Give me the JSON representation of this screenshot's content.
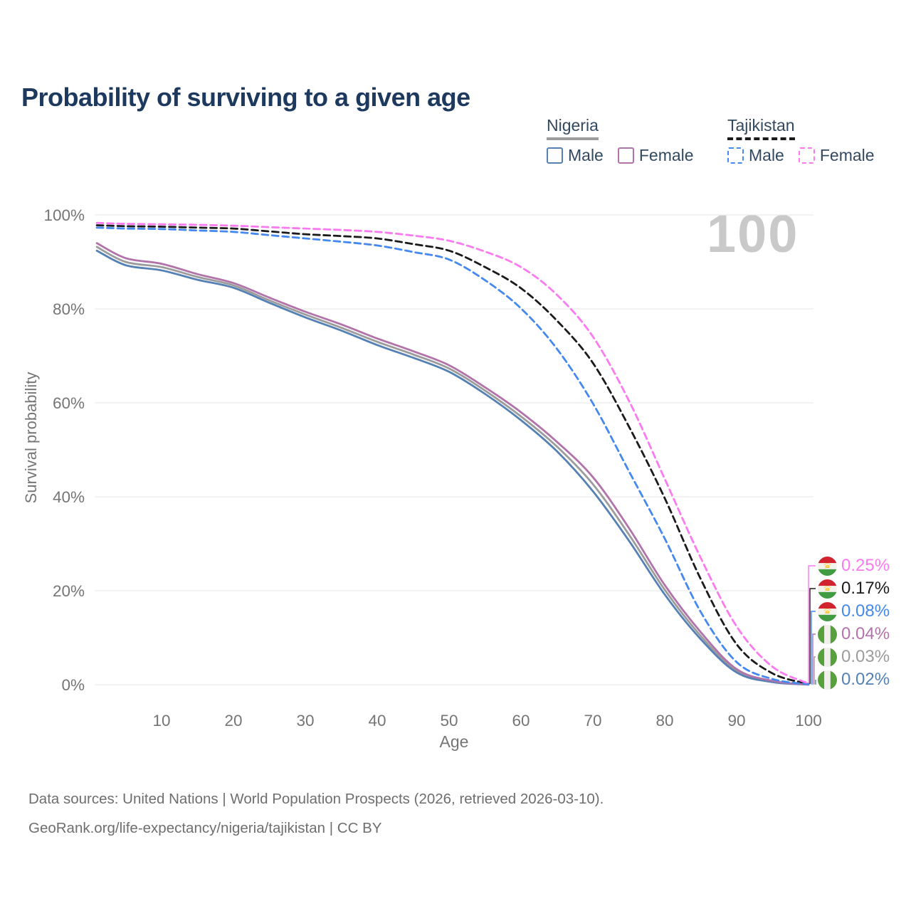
{
  "title": "Probability of surviving to a given age",
  "watermark": "100",
  "legend": {
    "groups": [
      {
        "country": "Nigeria",
        "line_style": "solid",
        "line_color": "#9c9c9c",
        "items": [
          {
            "label": "Male",
            "color": "#5581b5",
            "dash": false
          },
          {
            "label": "Female",
            "color": "#b273aa",
            "dash": false
          }
        ]
      },
      {
        "country": "Tajikistan",
        "line_style": "dashed",
        "line_color": "#1b1b1b",
        "items": [
          {
            "label": "Male",
            "color": "#4488f0",
            "dash": true
          },
          {
            "label": "Female",
            "color": "#fb7af0",
            "dash": true
          }
        ]
      }
    ]
  },
  "chart_data": {
    "type": "line",
    "title": "Probability of surviving to a given age",
    "xlabel": "Age",
    "ylabel": "Survival probability",
    "xlim": [
      1,
      100
    ],
    "ylim": [
      0,
      100
    ],
    "grid": "horizontal",
    "x_ticks": [
      10,
      20,
      30,
      40,
      50,
      60,
      70,
      80,
      90,
      100
    ],
    "y_ticks": [
      {
        "value": 0,
        "label": "0%"
      },
      {
        "value": 20,
        "label": "20%"
      },
      {
        "value": 40,
        "label": "40%"
      },
      {
        "value": 60,
        "label": "60%"
      },
      {
        "value": 80,
        "label": "80%"
      },
      {
        "value": 100,
        "label": "100%"
      }
    ],
    "x": [
      1,
      5,
      10,
      15,
      20,
      25,
      30,
      35,
      40,
      45,
      50,
      55,
      60,
      65,
      70,
      75,
      80,
      85,
      90,
      95,
      100
    ],
    "series": [
      {
        "name": "Nigeria Both sexes",
        "country": "Nigeria",
        "sex": "both",
        "color": "#9c9c9c",
        "dash": false,
        "flag": "nigeria",
        "end_label": "0.03%",
        "end_label_color": "#9c9c9c",
        "values": [
          93.2,
          90.0,
          88.9,
          86.8,
          85.0,
          81.8,
          78.8,
          76.0,
          73.0,
          70.3,
          67.3,
          62.6,
          57.1,
          50.7,
          42.7,
          32.0,
          20.2,
          10.4,
          2.9,
          0.65,
          0.03
        ]
      },
      {
        "name": "Nigeria Male",
        "country": "Nigeria",
        "sex": "male",
        "color": "#5581b5",
        "dash": false,
        "flag": "nigeria",
        "end_label": "0.02%",
        "end_label_color": "#5581b5",
        "values": [
          92.4,
          89.3,
          88.2,
          86.2,
          84.5,
          81.3,
          78.2,
          75.4,
          72.3,
          69.6,
          66.6,
          61.9,
          56.3,
          49.7,
          41.2,
          30.7,
          19.2,
          9.7,
          2.6,
          0.55,
          0.02
        ]
      },
      {
        "name": "Nigeria Female",
        "country": "Nigeria",
        "sex": "female",
        "color": "#b273aa",
        "dash": false,
        "flag": "nigeria",
        "end_label": "0.04%",
        "end_label_color": "#b273aa",
        "values": [
          94.0,
          90.8,
          89.6,
          87.4,
          85.5,
          82.4,
          79.4,
          76.7,
          73.7,
          71.0,
          68.0,
          63.3,
          58.0,
          51.7,
          44.2,
          33.4,
          21.2,
          11.2,
          3.3,
          0.8,
          0.04
        ]
      },
      {
        "name": "Tajikistan Both sexes",
        "country": "Tajikistan",
        "sex": "both",
        "color": "#1b1b1b",
        "dash": true,
        "flag": "tajikistan",
        "end_label": "0.17%",
        "end_label_color": "#1b1b1b",
        "values": [
          97.8,
          97.6,
          97.5,
          97.3,
          97.1,
          96.5,
          95.9,
          95.5,
          95.0,
          93.8,
          92.4,
          88.9,
          84.4,
          77.5,
          68.5,
          55.0,
          39.7,
          22.5,
          8.6,
          2.4,
          0.17
        ]
      },
      {
        "name": "Tajikistan Male",
        "country": "Tajikistan",
        "sex": "male",
        "color": "#4488f0",
        "dash": true,
        "flag": "tajikistan",
        "end_label": "0.08%",
        "end_label_color": "#4488f0",
        "values": [
          97.3,
          97.1,
          97.0,
          96.7,
          96.4,
          95.7,
          95.0,
          94.3,
          93.5,
          92.1,
          90.5,
          86.1,
          80.1,
          71.5,
          59.9,
          45.5,
          31.1,
          15.5,
          4.8,
          1.2,
          0.08
        ]
      },
      {
        "name": "Tajikistan Female",
        "country": "Tajikistan",
        "sex": "female",
        "color": "#fb7af0",
        "dash": true,
        "flag": "tajikistan",
        "end_label": "0.25%",
        "end_label_color": "#fb7af0",
        "values": [
          98.3,
          98.1,
          98.0,
          97.9,
          97.7,
          97.4,
          97.1,
          96.8,
          96.4,
          95.6,
          94.5,
          92.2,
          88.9,
          83.0,
          74.1,
          60.5,
          43.8,
          27.0,
          12.4,
          3.8,
          0.25
        ]
      }
    ],
    "end_label_order": [
      "0.25%",
      "0.17%",
      "0.08%",
      "0.04%",
      "0.03%",
      "0.02%"
    ],
    "legend_position": "top-right"
  },
  "flags": {
    "tajikistan": {
      "red": "#d0232e",
      "white": "#f4f2ee",
      "green": "#419b43",
      "gold": "#f2c227"
    },
    "nigeria": {
      "green": "#57a03c",
      "white": "#f0efeb"
    }
  },
  "footer": {
    "line1": "Data sources: United Nations | World Population Prospects (2026, retrieved 2026-03-10).",
    "line2": "GeoRank.org/life-expectancy/nigeria/tajikistan | CC BY"
  }
}
